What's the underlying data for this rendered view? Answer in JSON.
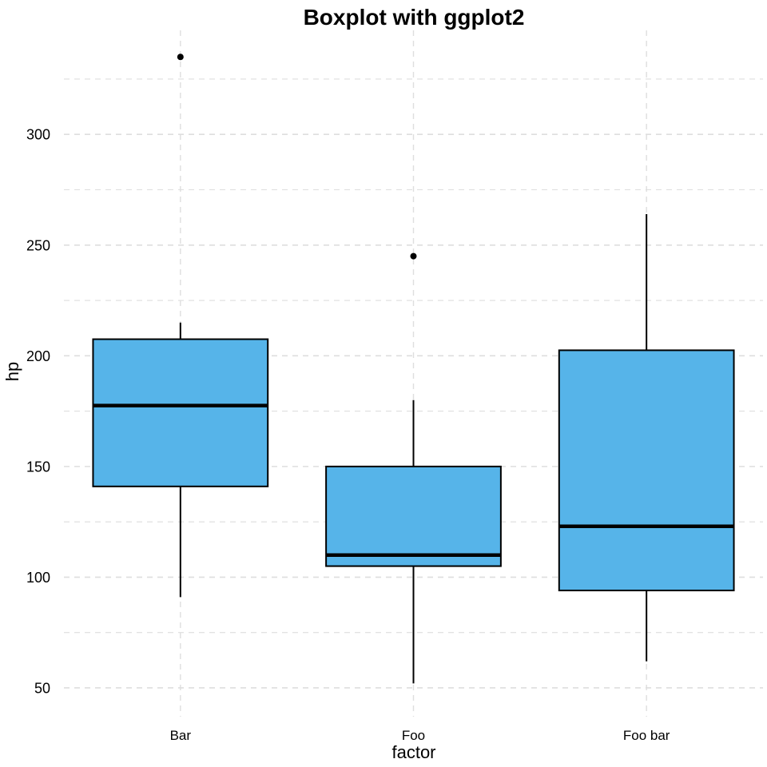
{
  "chart_data": {
    "type": "boxplot",
    "title": "Boxplot with ggplot2",
    "xlabel": "factor",
    "ylabel": "hp",
    "ylim": [
      37,
      347
    ],
    "yticks": [
      50,
      100,
      150,
      200,
      250,
      300
    ],
    "ytick_labels": [
      "50",
      "100",
      "150",
      "200",
      "250",
      "300"
    ],
    "minor_gridlines": true,
    "grid": "dashed",
    "categories": [
      "Bar",
      "Foo",
      "Foo bar"
    ],
    "boxes": [
      {
        "category": "Bar",
        "whisker_low": 91,
        "q1": 141,
        "median": 177.5,
        "q3": 207.5,
        "whisker_high": 215,
        "outliers": [
          335
        ]
      },
      {
        "category": "Foo",
        "whisker_low": 52,
        "q1": 105,
        "median": 110,
        "q3": 150,
        "whisker_high": 180,
        "outliers": [
          245
        ]
      },
      {
        "category": "Foo bar",
        "whisker_low": 62,
        "q1": 94,
        "median": 123,
        "q3": 202.5,
        "whisker_high": 264,
        "outliers": []
      }
    ],
    "colors": {
      "box_fill": "#56b4e9",
      "box_stroke": "#000000",
      "grid": "#dedede",
      "outlier": "#000000"
    }
  }
}
